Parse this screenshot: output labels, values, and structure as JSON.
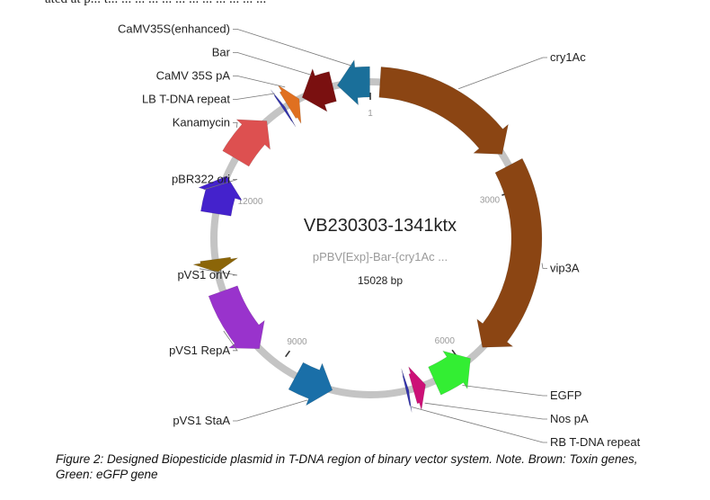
{
  "top_text_fragment": "ated at p... t... ... ... ... ... ... ... ... ... ... ... ...",
  "plasmid": {
    "name": "VB230303-1341ktx",
    "subtitle": "pPBV[Exp]-Bar-{cry1Ac ...",
    "size": "15028 bp",
    "total_bp": 15028
  },
  "ticks": [
    {
      "label": "1",
      "bp": 0
    },
    {
      "label": "3000",
      "bp": 3000
    },
    {
      "label": "6000",
      "bp": 6000
    },
    {
      "label": "9000",
      "bp": 9000
    },
    {
      "label": "12000",
      "bp": 12000
    }
  ],
  "features": [
    {
      "name": "cry1Ac",
      "start_bp": 150,
      "end_bp": 2400,
      "strand": "+",
      "color": "#8B4513",
      "label_side": "right"
    },
    {
      "name": "vip3A",
      "start_bp": 2600,
      "end_bp": 5600,
      "strand": "+",
      "color": "#8B4513",
      "label_side": "right"
    },
    {
      "name": "EGFP",
      "start_bp": 5850,
      "end_bp": 6500,
      "strand": "-",
      "color": "#33EE33",
      "label_side": "right"
    },
    {
      "name": "Nos pA",
      "start_bp": 6650,
      "end_bp": 6850,
      "strand": "-",
      "color": "#CC1177",
      "label_side": "right"
    },
    {
      "name": "RB T-DNA repeat",
      "start_bp": 6920,
      "end_bp": 6960,
      "strand": "-",
      "color": "#3333AA",
      "label_side": "right"
    },
    {
      "name": "pVS1 StaA",
      "start_bp": 8100,
      "end_bp": 8700,
      "strand": "-",
      "color": "#1A6FA8",
      "label_side": "left"
    },
    {
      "name": "pVS1 RepA",
      "start_bp": 9400,
      "end_bp": 10450,
      "strand": "-",
      "color": "#9933CC",
      "label_side": "left"
    },
    {
      "name": "pVS1 oriV",
      "start_bp": 10750,
      "end_bp": 10950,
      "strand": "-",
      "color": "#8B6508",
      "label_side": "left"
    },
    {
      "name": "pBR322 ori",
      "start_bp": 11650,
      "end_bp": 12250,
      "strand": "+",
      "color": "#4422CC",
      "label_side": "left"
    },
    {
      "name": "Kanamycin",
      "start_bp": 12550,
      "end_bp": 13300,
      "strand": "+",
      "color": "#DD5050",
      "label_side": "left"
    },
    {
      "name": "LB T-DNA repeat",
      "start_bp": 13610,
      "end_bp": 13650,
      "strand": "+",
      "color": "#3333AA",
      "label_side": "left"
    },
    {
      "name": "CaMV 35S pA",
      "start_bp": 13700,
      "end_bp": 13900,
      "strand": "+",
      "color": "#E07020",
      "label_side": "left"
    },
    {
      "name": "Bar",
      "start_bp": 13950,
      "end_bp": 14450,
      "strand": "-",
      "color": "#7A1010",
      "label_side": "left"
    },
    {
      "name": "CaMV35S(enhanced)",
      "start_bp": 14520,
      "end_bp": 15020,
      "strand": "-",
      "color": "#1A6F9A",
      "label_side": "left"
    }
  ],
  "caption": "Figure 2: Designed Biopesticide plasmid in T-DNA region of binary vector system. Note. Brown: Toxin genes, Green: eGFP gene"
}
